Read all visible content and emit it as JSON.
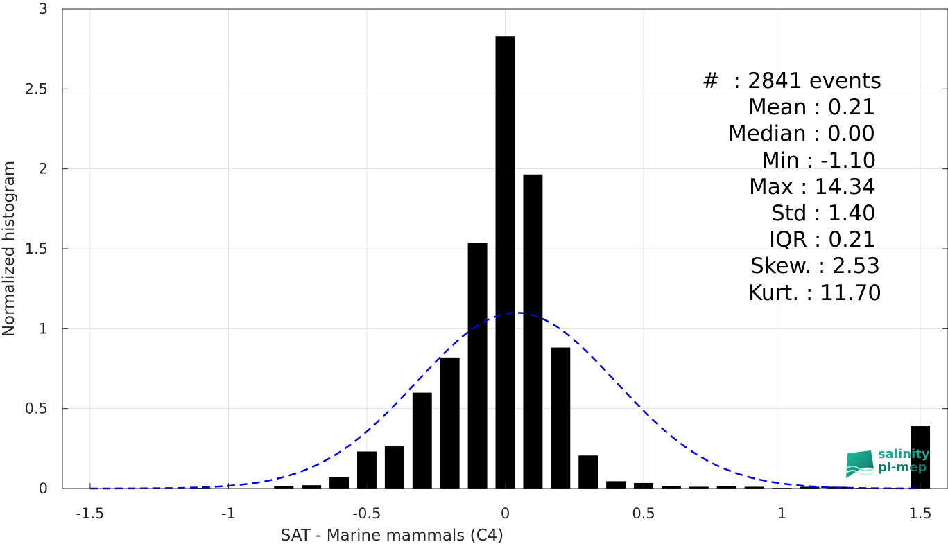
{
  "chart_data": {
    "type": "bar",
    "xlabel": "SAT - Marine mammals (C4)",
    "ylabel": "Normalized histogram",
    "xlim": [
      -1.6,
      1.6
    ],
    "ylim": [
      0,
      3
    ],
    "x_ticks": [
      "-1.5",
      "-1",
      "-0.5",
      "0",
      "0.5",
      "1",
      "1.5"
    ],
    "x_tick_values": [
      -1.5,
      -1,
      -0.5,
      0,
      0.5,
      1,
      1.5
    ],
    "y_ticks": [
      "0",
      "0.5",
      "1",
      "1.5",
      "2",
      "2.5",
      "3"
    ],
    "y_tick_values": [
      0,
      0.5,
      1,
      1.5,
      2,
      2.5,
      3
    ],
    "grid": true,
    "bar_color": "#000000",
    "bars": [
      {
        "x": -1.4,
        "y": 0.0
      },
      {
        "x": -1.3,
        "y": 0.0
      },
      {
        "x": -1.2,
        "y": 0.0
      },
      {
        "x": -1.1,
        "y": 0.004
      },
      {
        "x": -1.0,
        "y": 0.0
      },
      {
        "x": -0.9,
        "y": 0.0
      },
      {
        "x": -0.8,
        "y": 0.014
      },
      {
        "x": -0.7,
        "y": 0.021
      },
      {
        "x": -0.6,
        "y": 0.07
      },
      {
        "x": -0.5,
        "y": 0.232
      },
      {
        "x": -0.4,
        "y": 0.264
      },
      {
        "x": -0.3,
        "y": 0.6
      },
      {
        "x": -0.2,
        "y": 0.82
      },
      {
        "x": -0.1,
        "y": 1.535
      },
      {
        "x": 0.0,
        "y": 2.83
      },
      {
        "x": 0.1,
        "y": 1.965
      },
      {
        "x": 0.2,
        "y": 0.882
      },
      {
        "x": 0.3,
        "y": 0.207
      },
      {
        "x": 0.4,
        "y": 0.046
      },
      {
        "x": 0.5,
        "y": 0.035
      },
      {
        "x": 0.6,
        "y": 0.014
      },
      {
        "x": 0.7,
        "y": 0.011
      },
      {
        "x": 0.8,
        "y": 0.014
      },
      {
        "x": 0.9,
        "y": 0.011
      },
      {
        "x": 1.0,
        "y": 0.004
      },
      {
        "x": 1.1,
        "y": 0.011
      },
      {
        "x": 1.2,
        "y": 0.011
      },
      {
        "x": 1.3,
        "y": 0.004
      },
      {
        "x": 1.4,
        "y": 0.004
      },
      {
        "x": 1.5,
        "y": 0.39
      }
    ],
    "gaussian_fit": {
      "style": "dashed",
      "color": "#0000e6",
      "mean": 0.04,
      "peak": 1.1,
      "std": 0.36,
      "x_range": [
        -1.5,
        1.5
      ]
    },
    "annotations": [
      "#  : 2841 events",
      "Mean : 0.21",
      "Median : 0.00",
      "Min : -1.10",
      "Max : 14.34",
      "Std : 1.40",
      "IQR : 0.21",
      "Skew. : 2.53",
      "Kurt. : 11.70"
    ]
  },
  "logo": {
    "line1": "salinity",
    "line2": "pi-mep"
  }
}
